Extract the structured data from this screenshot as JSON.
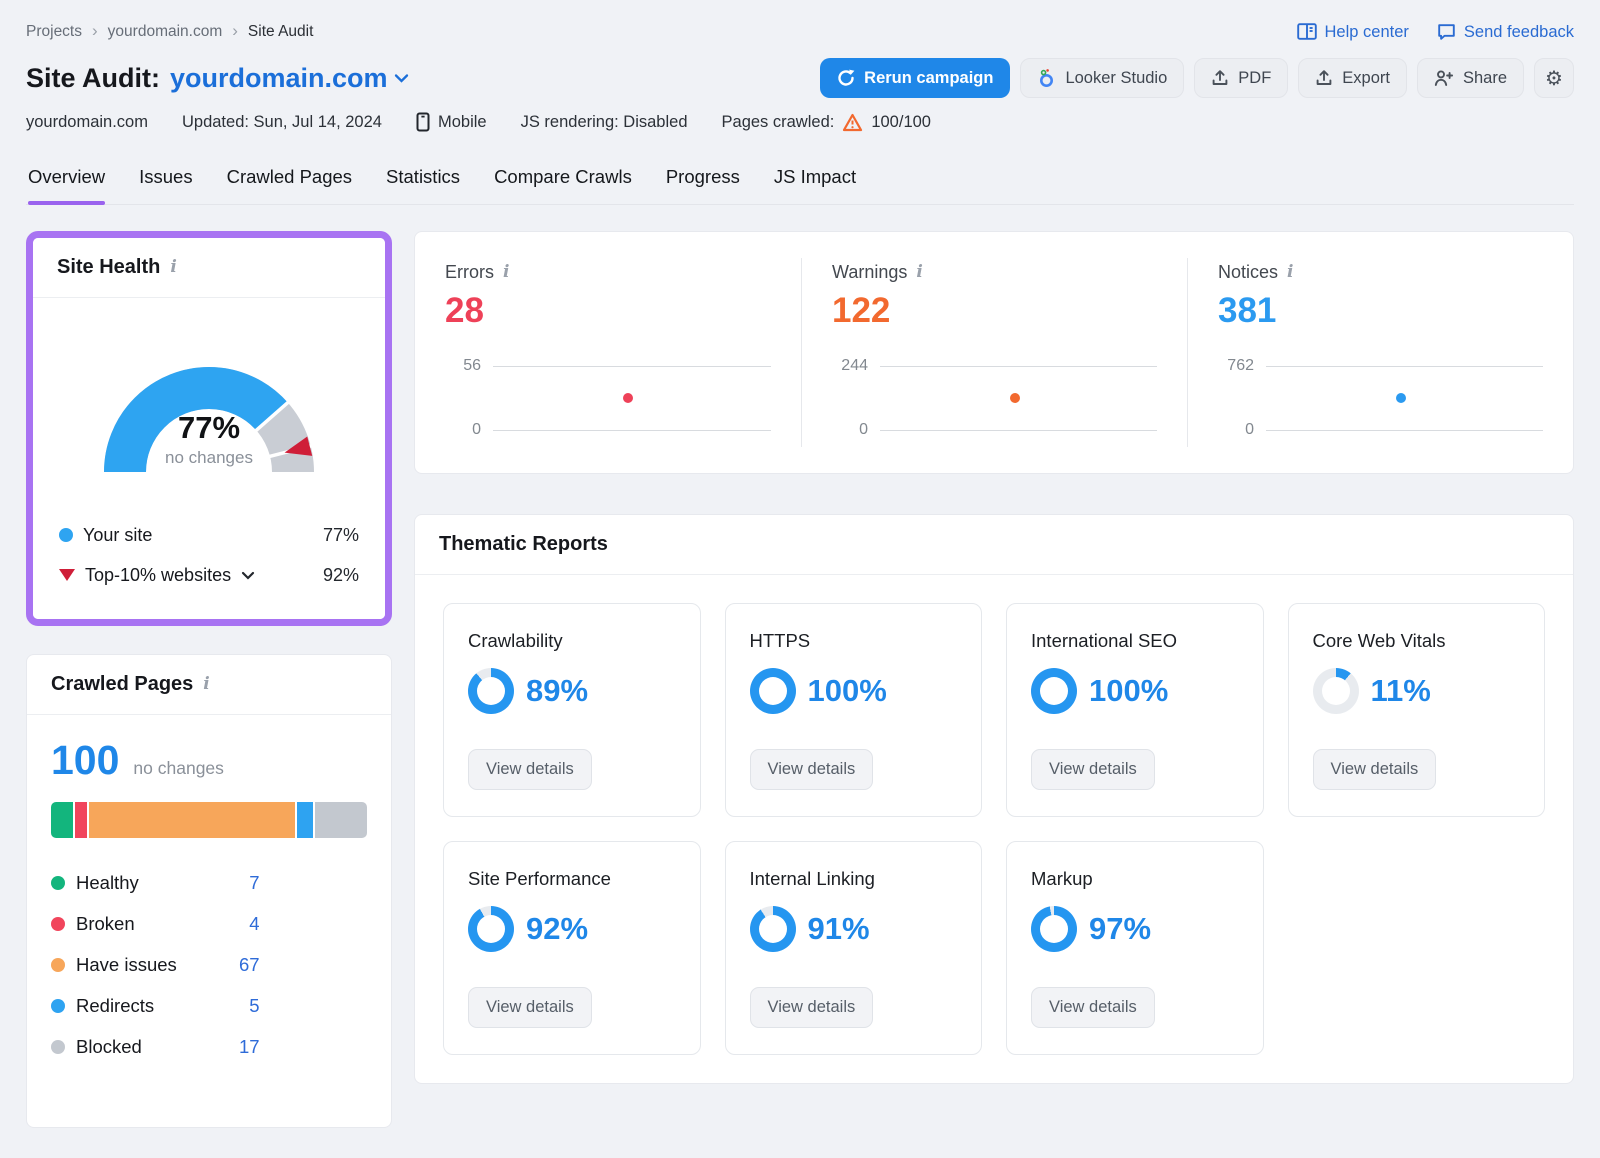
{
  "breadcrumb": {
    "items": [
      "Projects",
      "yourdomain.com",
      "Site Audit"
    ]
  },
  "topbar": {
    "help_center": "Help center",
    "send_feedback": "Send feedback"
  },
  "header": {
    "title_prefix": "Site Audit:",
    "domain": "yourdomain.com",
    "actions": {
      "rerun": "Rerun campaign",
      "looker_studio": "Looker Studio",
      "pdf": "PDF",
      "export": "Export",
      "share": "Share"
    }
  },
  "meta": {
    "domain": "yourdomain.com",
    "updated": "Updated: Sun, Jul 14, 2024",
    "device": "Mobile",
    "js_rendering": "JS rendering: Disabled",
    "pages_crawled_label": "Pages crawled:",
    "pages_crawled_value": "100/100"
  },
  "tabs": [
    {
      "label": "Overview",
      "active": true
    },
    {
      "label": "Issues",
      "active": false
    },
    {
      "label": "Crawled Pages",
      "active": false
    },
    {
      "label": "Statistics",
      "active": false
    },
    {
      "label": "Compare Crawls",
      "active": false
    },
    {
      "label": "Progress",
      "active": false
    },
    {
      "label": "JS Impact",
      "active": false
    }
  ],
  "site_health": {
    "title": "Site Health",
    "score_pct": 77,
    "score_label": "77%",
    "change_label": "no changes",
    "benchmark_pct": 92,
    "legend": [
      {
        "label": "Your site",
        "value": "77%"
      },
      {
        "label": "Top-10% websites",
        "value": "92%"
      }
    ]
  },
  "stats": {
    "items": [
      {
        "label": "Errors",
        "value": "28",
        "color": "#ee4158",
        "axis_top": "56",
        "axis_bottom": "0"
      },
      {
        "label": "Warnings",
        "value": "122",
        "color": "#f2692f",
        "axis_top": "244",
        "axis_bottom": "0"
      },
      {
        "label": "Notices",
        "value": "381",
        "color": "#2b9af0",
        "axis_top": "762",
        "axis_bottom": "0"
      }
    ]
  },
  "crawled_pages": {
    "title": "Crawled Pages",
    "total": "100",
    "change_label": "no changes",
    "legend": [
      {
        "label": "Healthy",
        "value": "7",
        "color": "#13b57d"
      },
      {
        "label": "Broken",
        "value": "4",
        "color": "#f1455c"
      },
      {
        "label": "Have issues",
        "value": "67",
        "color": "#f7a65a"
      },
      {
        "label": "Redirects",
        "value": "5",
        "color": "#2ea3f1"
      },
      {
        "label": "Blocked",
        "value": "17",
        "color": "#c3c8cf"
      }
    ]
  },
  "thematic": {
    "title": "Thematic Reports",
    "button_label": "View details",
    "cards": [
      {
        "label": "Crawlability",
        "percent": 89,
        "percent_label": "89%"
      },
      {
        "label": "HTTPS",
        "percent": 100,
        "percent_label": "100%"
      },
      {
        "label": "International SEO",
        "percent": 100,
        "percent_label": "100%"
      },
      {
        "label": "Core Web Vitals",
        "percent": 11,
        "percent_label": "11%"
      },
      {
        "label": "Site Performance",
        "percent": 92,
        "percent_label": "92%"
      },
      {
        "label": "Internal Linking",
        "percent": 91,
        "percent_label": "91%"
      },
      {
        "label": "Markup",
        "percent": 97,
        "percent_label": "97%"
      }
    ]
  },
  "colors": {
    "ring_blue": "#2596f0",
    "ring_track": "#e8ebef",
    "gauge_blue": "#2ea4f1",
    "gauge_gray": "#c9cdd4",
    "marker_red": "#cf1e38",
    "accent_purple": "#a873f2"
  }
}
